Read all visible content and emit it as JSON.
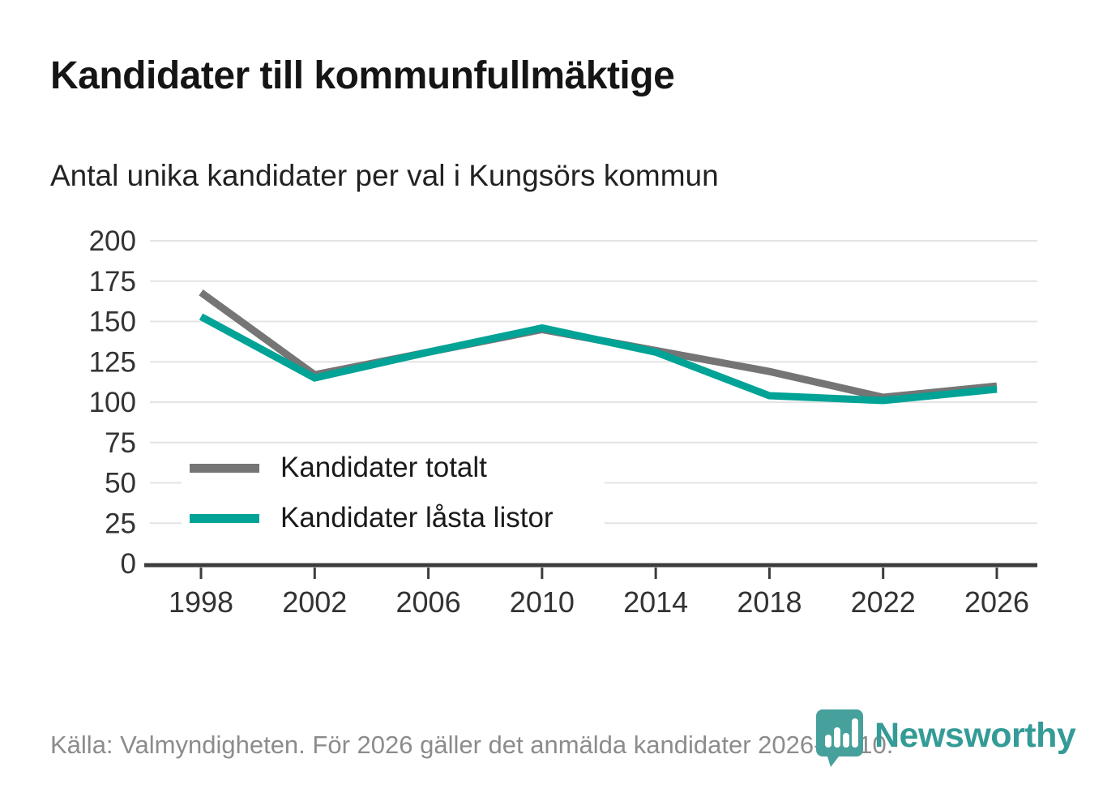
{
  "header": {
    "title": "Kandidater till kommunfullmäktige",
    "subtitle": "Antal unika kandidater per val i Kungsörs kommun"
  },
  "chart_data": {
    "type": "line",
    "title": "Kandidater till kommunfullmäktige",
    "subtitle": "Antal unika kandidater per val i Kungsörs kommun",
    "categories": [
      "1998",
      "2002",
      "2006",
      "2010",
      "2014",
      "2018",
      "2022",
      "2026"
    ],
    "series": [
      {
        "name": "Kandidater totalt",
        "color": "#757575",
        "values": [
          168,
          117,
          131,
          145,
          132,
          119,
          103,
          110
        ]
      },
      {
        "name": "Kandidater låsta listor",
        "color": "#00A396",
        "values": [
          153,
          115,
          131,
          146,
          131,
          104,
          101,
          108
        ]
      }
    ],
    "ylim": [
      0,
      200
    ],
    "yticks": [
      0,
      25,
      50,
      75,
      100,
      125,
      150,
      175,
      200
    ],
    "xlabel": "",
    "ylabel": "",
    "grid": true,
    "legend_position": "inside-left-bottom"
  },
  "footer": {
    "source": "Källa: Valmyndigheten. För 2026 gäller det anmälda kandidater 2026-04-10."
  },
  "logo": {
    "text": "Newsworthy",
    "icon": "newsworthy-pin-bar-chart-icon",
    "color": "#349B96"
  },
  "colors": {
    "axis": "#3d3d3d",
    "grid": "#e4e4e4",
    "tick_text": "#333333",
    "footer_text": "#8c8c8c"
  }
}
